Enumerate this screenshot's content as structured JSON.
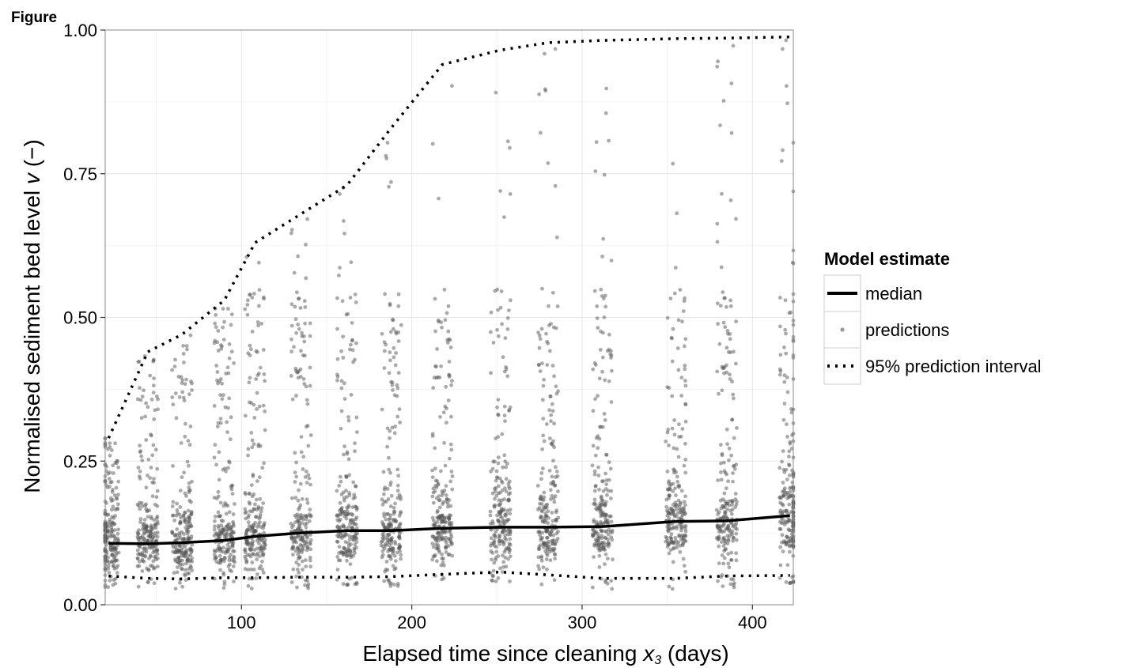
{
  "figure_label": "Figure",
  "chart_data": {
    "type": "scatter",
    "title": "",
    "xlabel": "Elapsed time since cleaning ",
    "xlabel_var": "x",
    "xlabel_sub": "3",
    "xlabel_units": " (days)",
    "ylabel": "Normalised sediment bed level ",
    "ylabel_var": "v",
    "ylabel_units": " (−)",
    "xlim": [
      20,
      424
    ],
    "ylim": [
      0,
      1
    ],
    "x_ticks": [
      100,
      200,
      300,
      400
    ],
    "x_tick_labels": [
      "100",
      "200",
      "300",
      "400"
    ],
    "y_ticks": [
      0,
      0.25,
      0.5,
      0.75,
      1
    ],
    "y_tick_labels": [
      "0.00",
      "0.25",
      "0.50",
      "0.75",
      "1.00"
    ],
    "grid": true,
    "legend": {
      "title": "Model estimate",
      "position": "right",
      "entries": [
        {
          "label": "median",
          "style": "solid-line"
        },
        {
          "label": "predictions",
          "style": "point"
        },
        {
          "label": "95% prediction interval",
          "style": "dotted-line"
        }
      ]
    },
    "prediction_times": [
      22,
      45,
      65,
      90,
      108,
      135,
      162,
      188,
      218,
      252,
      280,
      312,
      355,
      385,
      422
    ],
    "series": [
      {
        "name": "median",
        "x": [
          22,
          45,
          65,
          90,
          108,
          135,
          162,
          188,
          218,
          252,
          280,
          312,
          355,
          385,
          422
        ],
        "y": [
          0.107,
          0.106,
          0.108,
          0.112,
          0.119,
          0.125,
          0.129,
          0.129,
          0.133,
          0.135,
          0.135,
          0.136,
          0.145,
          0.146,
          0.155
        ]
      },
      {
        "name": "95% prediction interval",
        "bound": "upper",
        "x": [
          22,
          45,
          65,
          90,
          108,
          135,
          162,
          188,
          218,
          252,
          280,
          312,
          355,
          385,
          422
        ],
        "y": [
          0.29,
          0.44,
          0.47,
          0.53,
          0.63,
          0.68,
          0.73,
          0.83,
          0.94,
          0.965,
          0.978,
          0.982,
          0.985,
          0.986,
          0.988
        ]
      },
      {
        "name": "95% prediction interval",
        "bound": "lower",
        "x": [
          22,
          45,
          65,
          90,
          108,
          135,
          162,
          188,
          218,
          252,
          280,
          312,
          355,
          385,
          422
        ],
        "y": [
          0.05,
          0.046,
          0.045,
          0.047,
          0.047,
          0.048,
          0.048,
          0.049,
          0.053,
          0.057,
          0.052,
          0.046,
          0.046,
          0.05,
          0.051
        ]
      }
    ],
    "colors": {
      "median": "#000000",
      "interval": "#000000",
      "points": "#555555",
      "grid": "#e6e6e6",
      "panel_border": "#888888"
    }
  }
}
